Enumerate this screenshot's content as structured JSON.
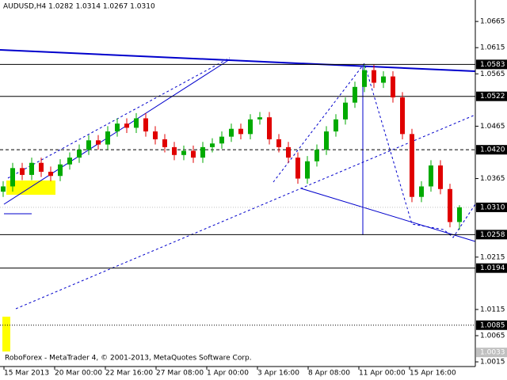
{
  "chart_data": {
    "type": "candlestick",
    "title": "AUDUSD,H4  1.0282 1.0314 1.0267 1.0310",
    "footer": "RoboForex - MetaTrader 4, © 2001-2013, MetaQuotes Software Corp.",
    "x_labels": [
      "15 Mar 2013",
      "20 Mar 00:00",
      "22 Mar 16:00",
      "27 Mar 08:00",
      "1 Apr 00:00",
      "3 Apr 16:00",
      "8 Apr 08:00",
      "11 Apr 00:00",
      "15 Apr 16:00"
    ],
    "open": [
      1.034,
      1.035,
      1.0385,
      1.0372,
      1.0395,
      1.0378,
      1.037,
      1.0392,
      1.0405,
      1.042,
      1.0438,
      1.043,
      1.0455,
      1.047,
      1.0462,
      1.048,
      1.0455,
      1.044,
      1.0425,
      1.041,
      1.0418,
      1.0405,
      1.0425,
      1.0432,
      1.0445,
      1.046,
      1.045,
      1.0478,
      1.0482,
      1.044,
      1.0425,
      1.0405,
      1.0365,
      1.0398,
      1.042,
      1.0455,
      1.0478,
      1.051,
      1.054,
      1.0572,
      1.0548,
      1.056,
      1.052,
      1.045,
      1.033,
      1.035,
      1.039,
      1.0345,
      1.0282
    ],
    "high": [
      1.036,
      1.0395,
      1.0395,
      1.0405,
      1.0405,
      1.0388,
      1.0402,
      1.0415,
      1.043,
      1.0448,
      1.0448,
      1.0465,
      1.048,
      1.048,
      1.049,
      1.049,
      1.0465,
      1.045,
      1.0435,
      1.0428,
      1.0428,
      1.0435,
      1.0442,
      1.0455,
      1.047,
      1.047,
      1.0488,
      1.0492,
      1.0492,
      1.045,
      1.0435,
      1.0415,
      1.0408,
      1.043,
      1.0465,
      1.0488,
      1.052,
      1.055,
      1.0582,
      1.0582,
      1.057,
      1.057,
      1.053,
      1.046,
      1.036,
      1.04,
      1.04,
      1.0355,
      1.0314
    ],
    "low": [
      1.033,
      1.034,
      1.0362,
      1.0362,
      1.0368,
      1.036,
      1.036,
      1.0382,
      1.0395,
      1.041,
      1.042,
      1.042,
      1.0445,
      1.0452,
      1.0452,
      1.0445,
      1.043,
      1.0415,
      1.04,
      1.04,
      1.0395,
      1.0395,
      1.0415,
      1.0422,
      1.0435,
      1.044,
      1.044,
      1.0468,
      1.043,
      1.0415,
      1.0395,
      1.0355,
      1.0355,
      1.0388,
      1.041,
      1.0445,
      1.0468,
      1.05,
      1.053,
      1.0538,
      1.0538,
      1.051,
      1.044,
      1.032,
      1.032,
      1.034,
      1.0335,
      1.0272,
      1.0267
    ],
    "close": [
      1.035,
      1.0385,
      1.0372,
      1.0395,
      1.0378,
      1.037,
      1.0392,
      1.0405,
      1.042,
      1.0438,
      1.043,
      1.0455,
      1.047,
      1.0462,
      1.048,
      1.0455,
      1.044,
      1.0425,
      1.041,
      1.0418,
      1.0405,
      1.0425,
      1.0432,
      1.0445,
      1.046,
      1.045,
      1.0478,
      1.0482,
      1.044,
      1.0425,
      1.0405,
      1.0365,
      1.0398,
      1.042,
      1.0455,
      1.0478,
      1.051,
      1.054,
      1.0572,
      1.0548,
      1.056,
      1.052,
      1.045,
      1.033,
      1.035,
      1.039,
      1.0345,
      1.0282,
      1.031
    ],
    "up_color": "#00aa00",
    "down_color": "#e00000",
    "ylim": [
      1.0003,
      1.0706
    ],
    "yticks": [
      1.0665,
      1.0615,
      1.0565,
      1.0465,
      1.0365,
      1.0215,
      1.0115,
      1.0065,
      1.0015
    ],
    "levels": {
      "values": [
        1.0583,
        1.0522,
        1.042,
        1.0258,
        1.0194,
        1.0085,
        1.0033
      ],
      "value_labels": [
        "1.0583",
        "1.0522",
        "1.0420",
        "1.0258",
        "1.0194",
        "1.0085",
        "1.0033"
      ],
      "styles": [
        "solid",
        "solid",
        "dashed",
        "solid",
        "solid",
        "dotted",
        "none"
      ]
    },
    "current_price": {
      "value": 1.031,
      "label": "1.0310"
    }
  }
}
